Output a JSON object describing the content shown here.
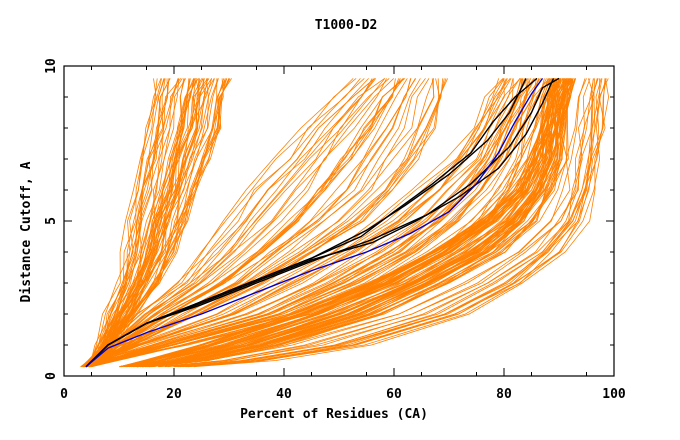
{
  "chart_data": {
    "type": "line",
    "title": "T1000-D2",
    "xlabel": "Percent of Residues (CA)",
    "ylabel": "Distance Cutoff, A",
    "xlim": [
      0,
      100
    ],
    "ylim": [
      0,
      10
    ],
    "xticks": [
      0,
      20,
      40,
      60,
      80,
      100
    ],
    "yticks": [
      0,
      5,
      10
    ],
    "grid": false,
    "legend": "none",
    "colors": {
      "bulk": "#ff8000",
      "highlight_dark": "#000000",
      "highlight_blue": "#0000cc"
    },
    "y_levels": [
      0.3,
      0.5,
      1,
      2,
      3,
      4,
      5,
      6,
      7,
      8,
      9,
      9.6
    ],
    "bulk_groups": [
      {
        "name": "steep-fan",
        "count": 60,
        "start": [
          [
            0.3,
            3
          ],
          [
            0.5,
            5
          ],
          [
            1,
            6
          ],
          [
            2,
            8
          ],
          [
            3,
            10
          ],
          [
            4,
            11
          ],
          [
            5,
            12
          ],
          [
            6,
            13
          ],
          [
            7,
            14
          ],
          [
            8,
            15
          ],
          [
            9,
            16
          ],
          [
            9.6,
            17
          ]
        ],
        "end": [
          [
            0.3,
            4
          ],
          [
            0.5,
            7
          ],
          [
            1,
            9
          ],
          [
            2,
            13
          ],
          [
            3,
            17
          ],
          [
            4,
            20
          ],
          [
            5,
            22
          ],
          [
            6,
            24
          ],
          [
            7,
            26
          ],
          [
            8,
            28
          ],
          [
            9,
            29
          ],
          [
            9.6,
            30
          ]
        ]
      },
      {
        "name": "mid-fan",
        "count": 40,
        "start": [
          [
            0.3,
            3
          ],
          [
            0.5,
            5
          ],
          [
            1,
            8
          ],
          [
            2,
            13
          ],
          [
            3,
            20
          ],
          [
            4,
            25
          ],
          [
            5,
            29
          ],
          [
            6,
            33
          ],
          [
            7,
            38
          ],
          [
            8,
            43
          ],
          [
            9,
            49
          ],
          [
            9.6,
            53
          ]
        ],
        "end": [
          [
            0.3,
            4
          ],
          [
            0.5,
            7
          ],
          [
            1,
            12
          ],
          [
            2,
            24
          ],
          [
            3,
            36
          ],
          [
            4,
            45
          ],
          [
            5,
            54
          ],
          [
            6,
            60
          ],
          [
            7,
            64
          ],
          [
            8,
            67
          ],
          [
            9,
            68
          ],
          [
            9.6,
            69
          ]
        ]
      },
      {
        "name": "lower-fan",
        "count": 40,
        "start": [
          [
            0.3,
            4
          ],
          [
            0.5,
            6
          ],
          [
            1,
            12
          ],
          [
            2,
            28
          ],
          [
            3,
            38
          ],
          [
            4,
            48
          ],
          [
            5,
            57
          ],
          [
            6,
            64
          ],
          [
            7,
            70
          ],
          [
            8,
            74
          ],
          [
            9,
            77
          ],
          [
            9.6,
            79
          ]
        ],
        "end": [
          [
            0.3,
            5
          ],
          [
            0.5,
            9
          ],
          [
            1,
            22
          ],
          [
            2,
            45
          ],
          [
            3,
            60
          ],
          [
            4,
            70
          ],
          [
            5,
            77
          ],
          [
            6,
            81
          ],
          [
            7,
            84
          ],
          [
            8,
            86
          ],
          [
            9,
            88
          ],
          [
            9.6,
            89
          ]
        ]
      },
      {
        "name": "dense-band",
        "count": 70,
        "start": [
          [
            0.3,
            10
          ],
          [
            0.5,
            15
          ],
          [
            1,
            25
          ],
          [
            2,
            42
          ],
          [
            3,
            56
          ],
          [
            4,
            67
          ],
          [
            5,
            76
          ],
          [
            6,
            82
          ],
          [
            7,
            85
          ],
          [
            8,
            87
          ],
          [
            9,
            88
          ],
          [
            9.6,
            89
          ]
        ],
        "end": [
          [
            0.3,
            16
          ],
          [
            0.5,
            26
          ],
          [
            1,
            40
          ],
          [
            2,
            58
          ],
          [
            3,
            70
          ],
          [
            4,
            80
          ],
          [
            5,
            86
          ],
          [
            6,
            89
          ],
          [
            7,
            91
          ],
          [
            8,
            91
          ],
          [
            9,
            92
          ],
          [
            9.6,
            93
          ]
        ]
      },
      {
        "name": "outer-right",
        "count": 18,
        "start": [
          [
            0.3,
            15
          ],
          [
            0.5,
            25
          ],
          [
            1,
            40
          ],
          [
            2,
            60
          ],
          [
            3,
            72
          ],
          [
            4,
            82
          ],
          [
            5,
            88
          ],
          [
            6,
            91
          ],
          [
            7,
            92
          ],
          [
            8,
            93
          ],
          [
            9,
            94
          ],
          [
            9.6,
            94
          ]
        ],
        "end": [
          [
            0.3,
            25
          ],
          [
            0.5,
            40
          ],
          [
            1,
            58
          ],
          [
            2,
            76
          ],
          [
            3,
            86
          ],
          [
            4,
            92
          ],
          [
            5,
            96
          ],
          [
            6,
            97
          ],
          [
            7,
            98
          ],
          [
            8,
            99
          ],
          [
            9,
            99
          ],
          [
            9.6,
            99.5
          ]
        ]
      }
    ],
    "series": [
      {
        "color": "#000000",
        "points": [
          [
            4,
            0.3
          ],
          [
            8,
            1
          ],
          [
            15,
            1.7
          ],
          [
            25,
            2.4
          ],
          [
            35,
            3.1
          ],
          [
            45,
            3.8
          ],
          [
            55,
            4.7
          ],
          [
            62,
            5.5
          ],
          [
            70,
            6.5
          ],
          [
            77,
            7.6
          ],
          [
            81,
            8.5
          ],
          [
            84,
            9.6
          ]
        ]
      },
      {
        "color": "#000000",
        "points": [
          [
            4,
            0.3
          ],
          [
            8,
            1
          ],
          [
            15,
            1.7
          ],
          [
            25,
            2.3
          ],
          [
            35,
            3.0
          ],
          [
            45,
            3.7
          ],
          [
            56,
            4.4
          ],
          [
            66,
            5.2
          ],
          [
            74,
            6.2
          ],
          [
            81,
            7.4
          ],
          [
            85,
            8.5
          ],
          [
            87,
            9.3
          ],
          [
            90,
            9.6
          ]
        ]
      },
      {
        "color": "#000000",
        "points": [
          [
            4,
            0.3
          ],
          [
            8,
            1
          ],
          [
            15,
            1.7
          ],
          [
            25,
            2.4
          ],
          [
            35,
            3.1
          ],
          [
            45,
            3.8
          ],
          [
            54,
            4.5
          ],
          [
            60,
            5.3
          ],
          [
            67,
            6.2
          ],
          [
            74,
            7.2
          ],
          [
            78,
            8.2
          ],
          [
            82,
            9
          ],
          [
            86,
            9.6
          ]
        ]
      },
      {
        "color": "#000000",
        "points": [
          [
            4,
            0.3
          ],
          [
            8,
            1
          ],
          [
            15,
            1.7
          ],
          [
            25,
            2.35
          ],
          [
            35,
            3.05
          ],
          [
            45,
            3.75
          ],
          [
            56,
            4.3
          ],
          [
            64,
            5.0
          ],
          [
            72,
            5.8
          ],
          [
            79,
            6.7
          ],
          [
            84,
            7.8
          ],
          [
            87,
            8.8
          ],
          [
            89,
            9.6
          ]
        ]
      },
      {
        "color": "#0000cc",
        "points": [
          [
            4,
            0.3
          ],
          [
            8,
            0.9
          ],
          [
            15,
            1.4
          ],
          [
            25,
            2.0
          ],
          [
            35,
            2.7
          ],
          [
            45,
            3.4
          ],
          [
            55,
            4.0
          ],
          [
            63,
            4.6
          ],
          [
            70,
            5.3
          ],
          [
            75,
            6.2
          ],
          [
            79,
            7.2
          ],
          [
            82,
            8.2
          ],
          [
            85,
            9.1
          ],
          [
            87,
            9.6
          ]
        ]
      }
    ]
  }
}
